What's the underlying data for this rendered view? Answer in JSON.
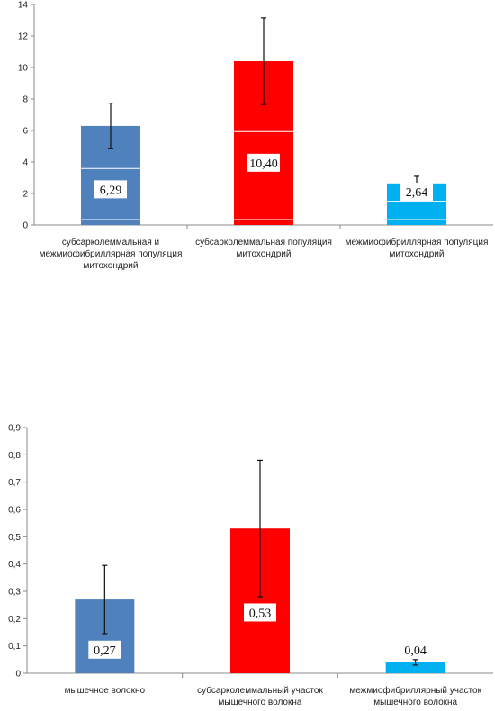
{
  "chart_data": [
    {
      "type": "bar",
      "categories": [
        [
          "субсарколеммальная и",
          "межмиофибриллярная популяция",
          "митохондрий"
        ],
        [
          "субсарколеммальная популяция",
          "митохондрий"
        ],
        [
          "межмиофибриллярная популяция",
          "митохондрий"
        ]
      ],
      "values": [
        6.29,
        10.4,
        2.64
      ],
      "errors": [
        1.45,
        2.75,
        0.45
      ],
      "data_labels": [
        "6,29",
        "10,40",
        "2,64"
      ],
      "colors": [
        "#4f81bd",
        "#ff0000",
        "#00b0f0"
      ],
      "ylim": [
        0,
        14
      ],
      "yticks": [
        "0",
        "2",
        "4",
        "6",
        "8",
        "10",
        "12",
        "14"
      ],
      "grid": false,
      "xlabel": "",
      "ylabel": ""
    },
    {
      "type": "bar",
      "categories": [
        [
          "мышечное волокно"
        ],
        [
          "субсарколеммальный участок",
          "мышечного волокна"
        ],
        [
          "межмиофибриллярный участок",
          "мышечного волокна"
        ]
      ],
      "values": [
        0.27,
        0.53,
        0.04
      ],
      "errors": [
        0.125,
        0.25,
        0.01
      ],
      "data_labels": [
        "0,27",
        "0,53",
        "0,04"
      ],
      "colors": [
        "#4f81bd",
        "#ff0000",
        "#00b0f0"
      ],
      "ylim": [
        0,
        0.9
      ],
      "yticks": [
        "0",
        "0,1",
        "0,2",
        "0,3",
        "0,4",
        "0,5",
        "0,6",
        "0,7",
        "0,8",
        "0,9"
      ],
      "grid": false,
      "xlabel": "",
      "ylabel": ""
    }
  ]
}
